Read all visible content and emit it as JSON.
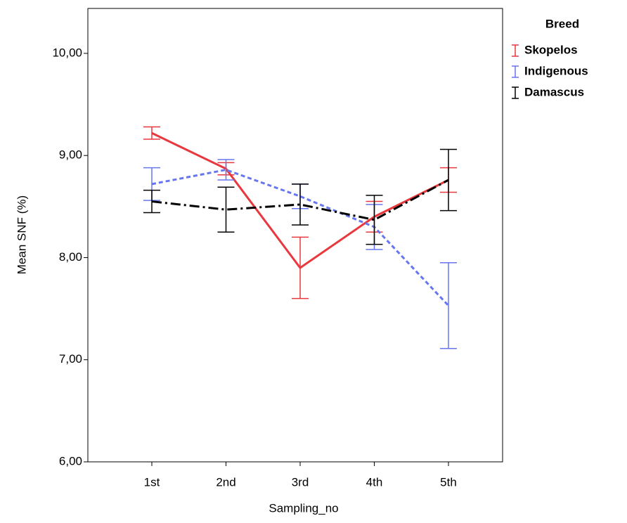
{
  "chart_data": {
    "type": "line",
    "x_label": "Sampling_no",
    "y_label": "Mean SNF (%)",
    "legend_title": "Breed",
    "categories": [
      "1st",
      "2nd",
      "3rd",
      "4th",
      "5th"
    ],
    "ylim": [
      6,
      10.44
    ],
    "yticks": [
      {
        "value": 6,
        "label": "6,00"
      },
      {
        "value": 7,
        "label": "7,00"
      },
      {
        "value": 8,
        "label": "8,00"
      },
      {
        "value": 9,
        "label": "9,00"
      },
      {
        "value": 10,
        "label": "10,00"
      }
    ],
    "grid": false,
    "legend": "right",
    "series": [
      {
        "name": "Skopelos",
        "color": "#e8383d",
        "dash": "solid",
        "values": [
          9.22,
          8.87,
          7.9,
          8.4,
          8.76
        ],
        "errors": [
          0.06,
          0.06,
          0.3,
          0.15,
          0.12
        ]
      },
      {
        "name": "Indigenous",
        "color": "#6676f0",
        "dash": "dashed",
        "values": [
          8.72,
          8.86,
          8.6,
          8.3,
          7.53
        ],
        "errors": [
          0.16,
          0.1,
          0.12,
          0.22,
          0.42
        ]
      },
      {
        "name": "Damascus",
        "color": "#000000",
        "dash": "dashdot",
        "values": [
          8.55,
          8.47,
          8.52,
          8.37,
          8.76
        ],
        "errors": [
          0.11,
          0.22,
          0.2,
          0.24,
          0.3
        ]
      }
    ]
  }
}
